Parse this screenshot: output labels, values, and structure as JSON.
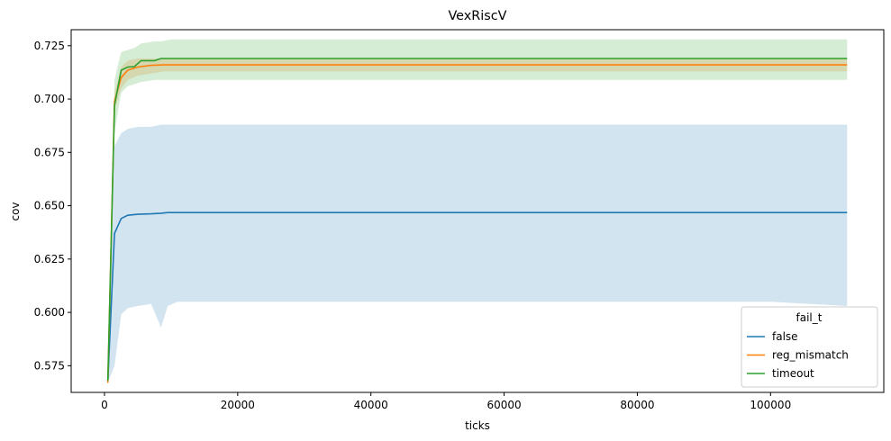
{
  "chart_data": {
    "type": "line",
    "title": "VexRiscV",
    "xlabel": "ticks",
    "ylabel": "cov",
    "xlim": [
      -5000,
      117000
    ],
    "ylim": [
      0.5625,
      0.7325
    ],
    "xticks": [
      0,
      20000,
      40000,
      60000,
      80000,
      100000
    ],
    "yticks": [
      0.575,
      0.6,
      0.625,
      0.65,
      0.675,
      0.7,
      0.725
    ],
    "xtick_labels": [
      "0",
      "20000",
      "40000",
      "60000",
      "80000",
      "100000"
    ],
    "ytick_labels": [
      "0.575",
      "0.600",
      "0.625",
      "0.650",
      "0.675",
      "0.700",
      "0.725"
    ],
    "grid": false,
    "legend": {
      "title": "fail_t",
      "placement": "lower-right"
    },
    "series": [
      {
        "name": "false",
        "color": "#1f77b4",
        "band_color": "#1f77b4",
        "x": [
          500,
          1500,
          2500,
          3500,
          5000,
          7000,
          8500,
          9500,
          11000,
          20000,
          40000,
          60000,
          80000,
          100000,
          111500
        ],
        "y": [
          0.568,
          0.637,
          0.644,
          0.6455,
          0.646,
          0.6462,
          0.6465,
          0.6468,
          0.6468,
          0.6468,
          0.6468,
          0.6468,
          0.6468,
          0.6468,
          0.6468
        ],
        "lower": [
          0.567,
          0.575,
          0.599,
          0.602,
          0.603,
          0.604,
          0.593,
          0.603,
          0.605,
          0.605,
          0.605,
          0.605,
          0.605,
          0.605,
          0.603
        ],
        "upper": [
          0.569,
          0.678,
          0.684,
          0.686,
          0.687,
          0.687,
          0.688,
          0.688,
          0.688,
          0.688,
          0.688,
          0.688,
          0.688,
          0.688,
          0.688
        ]
      },
      {
        "name": "reg_mismatch",
        "color": "#ff7f0e",
        "band_color": "#ff7f0e",
        "x": [
          500,
          1500,
          2500,
          3500,
          5000,
          7000,
          9000,
          20000,
          40000,
          60000,
          80000,
          100000,
          111500
        ],
        "y": [
          0.567,
          0.699,
          0.71,
          0.7135,
          0.715,
          0.7158,
          0.716,
          0.716,
          0.716,
          0.716,
          0.716,
          0.716,
          0.716
        ],
        "lower": [
          0.564,
          0.695,
          0.705,
          0.709,
          0.711,
          0.712,
          0.713,
          0.713,
          0.713,
          0.713,
          0.713,
          0.713,
          0.713
        ],
        "upper": [
          0.57,
          0.703,
          0.715,
          0.718,
          0.719,
          0.719,
          0.719,
          0.719,
          0.719,
          0.719,
          0.719,
          0.719,
          0.719
        ]
      },
      {
        "name": "timeout",
        "color": "#2ca02c",
        "band_color": "#2ca02c",
        "x": [
          500,
          1500,
          2500,
          3500,
          4500,
          5500,
          7500,
          8500,
          10000,
          20000,
          40000,
          60000,
          80000,
          100000,
          111500
        ],
        "y": [
          0.568,
          0.697,
          0.7135,
          0.715,
          0.7152,
          0.718,
          0.718,
          0.719,
          0.719,
          0.719,
          0.719,
          0.719,
          0.719,
          0.719,
          0.719
        ],
        "lower": [
          0.566,
          0.685,
          0.703,
          0.706,
          0.707,
          0.708,
          0.709,
          0.709,
          0.709,
          0.709,
          0.709,
          0.709,
          0.709,
          0.709,
          0.709
        ],
        "upper": [
          0.57,
          0.709,
          0.722,
          0.723,
          0.724,
          0.726,
          0.727,
          0.727,
          0.728,
          0.728,
          0.728,
          0.728,
          0.728,
          0.728,
          0.728
        ]
      }
    ]
  }
}
